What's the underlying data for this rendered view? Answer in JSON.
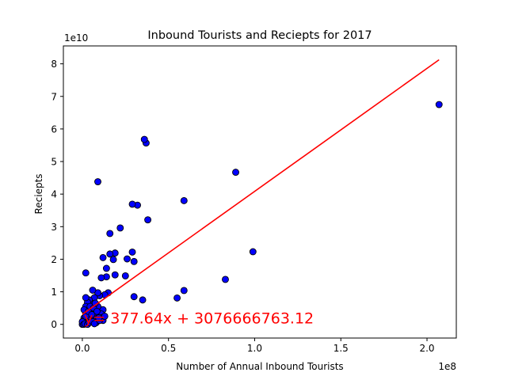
{
  "chart_data": {
    "type": "scatter",
    "title": "Inbound Tourists and Reciepts for 2017",
    "xlabel": "Number of Annual Inbound Tourists",
    "ylabel": "Reciepts",
    "x_offset_label": "1e8",
    "y_offset_label": "1e10",
    "x_ticks": [
      0.0,
      0.5,
      1.0,
      1.5,
      2.0
    ],
    "x_tick_labels": [
      "0.0",
      "0.5",
      "1.0",
      "1.5",
      "2.0"
    ],
    "y_ticks": [
      0,
      1,
      2,
      3,
      4,
      5,
      6,
      7,
      8
    ],
    "y_tick_labels": [
      "0",
      "1",
      "2",
      "3",
      "4",
      "5",
      "6",
      "7",
      "8"
    ],
    "xlim": [
      -0.11,
      2.17
    ],
    "ylim": [
      -0.42,
      8.55
    ],
    "grid": false,
    "marker_color": "#0000ff",
    "marker_edge_color": "#000000",
    "fit_line_color": "#ff0000",
    "annotation_color": "#ff0000",
    "annotation_text": "y= 377.64x + 3076666763.12",
    "annotation_position": [
      0.01,
      0.0
    ],
    "fit_line": {
      "slope": 377.64,
      "intercept": 3076666763.12,
      "x_range": [
        0.0,
        2.07
      ]
    },
    "points": [
      {
        "x": 2.07,
        "y": 6.75
      },
      {
        "x": 0.99,
        "y": 2.23
      },
      {
        "x": 0.89,
        "y": 4.67
      },
      {
        "x": 0.83,
        "y": 1.38
      },
      {
        "x": 0.59,
        "y": 3.8
      },
      {
        "x": 0.59,
        "y": 1.04
      },
      {
        "x": 0.55,
        "y": 0.81
      },
      {
        "x": 0.37,
        "y": 5.57
      },
      {
        "x": 0.36,
        "y": 5.68
      },
      {
        "x": 0.38,
        "y": 3.21
      },
      {
        "x": 0.32,
        "y": 3.66
      },
      {
        "x": 0.29,
        "y": 3.69
      },
      {
        "x": 0.35,
        "y": 0.75
      },
      {
        "x": 0.3,
        "y": 0.85
      },
      {
        "x": 0.3,
        "y": 1.93
      },
      {
        "x": 0.29,
        "y": 2.22
      },
      {
        "x": 0.26,
        "y": 2.01
      },
      {
        "x": 0.25,
        "y": 1.49
      },
      {
        "x": 0.22,
        "y": 2.96
      },
      {
        "x": 0.19,
        "y": 2.19
      },
      {
        "x": 0.18,
        "y": 1.99
      },
      {
        "x": 0.19,
        "y": 1.52
      },
      {
        "x": 0.16,
        "y": 2.79
      },
      {
        "x": 0.16,
        "y": 2.16
      },
      {
        "x": 0.14,
        "y": 1.46
      },
      {
        "x": 0.14,
        "y": 1.72
      },
      {
        "x": 0.12,
        "y": 2.05
      },
      {
        "x": 0.11,
        "y": 1.43
      },
      {
        "x": 0.09,
        "y": 4.38
      },
      {
        "x": 0.02,
        "y": 1.58
      },
      {
        "x": 0.15,
        "y": 0.97
      },
      {
        "x": 0.13,
        "y": 0.91
      },
      {
        "x": 0.12,
        "y": 0.45
      },
      {
        "x": 0.11,
        "y": 0.32
      },
      {
        "x": 0.12,
        "y": 0.12
      },
      {
        "x": 0.1,
        "y": 0.88
      },
      {
        "x": 0.09,
        "y": 0.97
      },
      {
        "x": 0.09,
        "y": 0.55
      },
      {
        "x": 0.08,
        "y": 0.25
      },
      {
        "x": 0.08,
        "y": 0.05
      },
      {
        "x": 0.07,
        "y": 0.82
      },
      {
        "x": 0.07,
        "y": 0.35
      },
      {
        "x": 0.06,
        "y": 1.05
      },
      {
        "x": 0.06,
        "y": 0.62
      },
      {
        "x": 0.05,
        "y": 0.42
      },
      {
        "x": 0.05,
        "y": 0.15
      },
      {
        "x": 0.04,
        "y": 0.75
      },
      {
        "x": 0.04,
        "y": 0.3
      },
      {
        "x": 0.03,
        "y": 0.68
      },
      {
        "x": 0.03,
        "y": 0.18
      },
      {
        "x": 0.02,
        "y": 0.82
      },
      {
        "x": 0.02,
        "y": 0.55
      },
      {
        "x": 0.02,
        "y": 0.35
      },
      {
        "x": 0.02,
        "y": 0.1
      },
      {
        "x": 0.01,
        "y": 0.45
      },
      {
        "x": 0.01,
        "y": 0.2
      },
      {
        "x": 0.01,
        "y": 0.05
      },
      {
        "x": 0.005,
        "y": 0.02
      },
      {
        "x": 0.003,
        "y": 0.1
      },
      {
        "x": 0.0,
        "y": 0.0
      },
      {
        "x": 0.0,
        "y": 0.08
      },
      {
        "x": 0.008,
        "y": 0.0
      },
      {
        "x": 0.015,
        "y": 0.02
      },
      {
        "x": 0.03,
        "y": 0.0
      },
      {
        "x": 0.04,
        "y": 0.05
      },
      {
        "x": 0.06,
        "y": 0.08
      },
      {
        "x": 0.07,
        "y": 0.02
      },
      {
        "x": 0.1,
        "y": 0.12
      },
      {
        "x": 0.11,
        "y": 0.2
      },
      {
        "x": 0.13,
        "y": 0.25
      },
      {
        "x": 0.02,
        "y": 0.25
      },
      {
        "x": 0.035,
        "y": 0.4
      },
      {
        "x": 0.045,
        "y": 0.55
      },
      {
        "x": 0.055,
        "y": 0.3
      },
      {
        "x": 0.065,
        "y": 0.5
      },
      {
        "x": 0.085,
        "y": 0.4
      },
      {
        "x": 0.095,
        "y": 0.2
      },
      {
        "x": 0.075,
        "y": 0.65
      }
    ]
  }
}
